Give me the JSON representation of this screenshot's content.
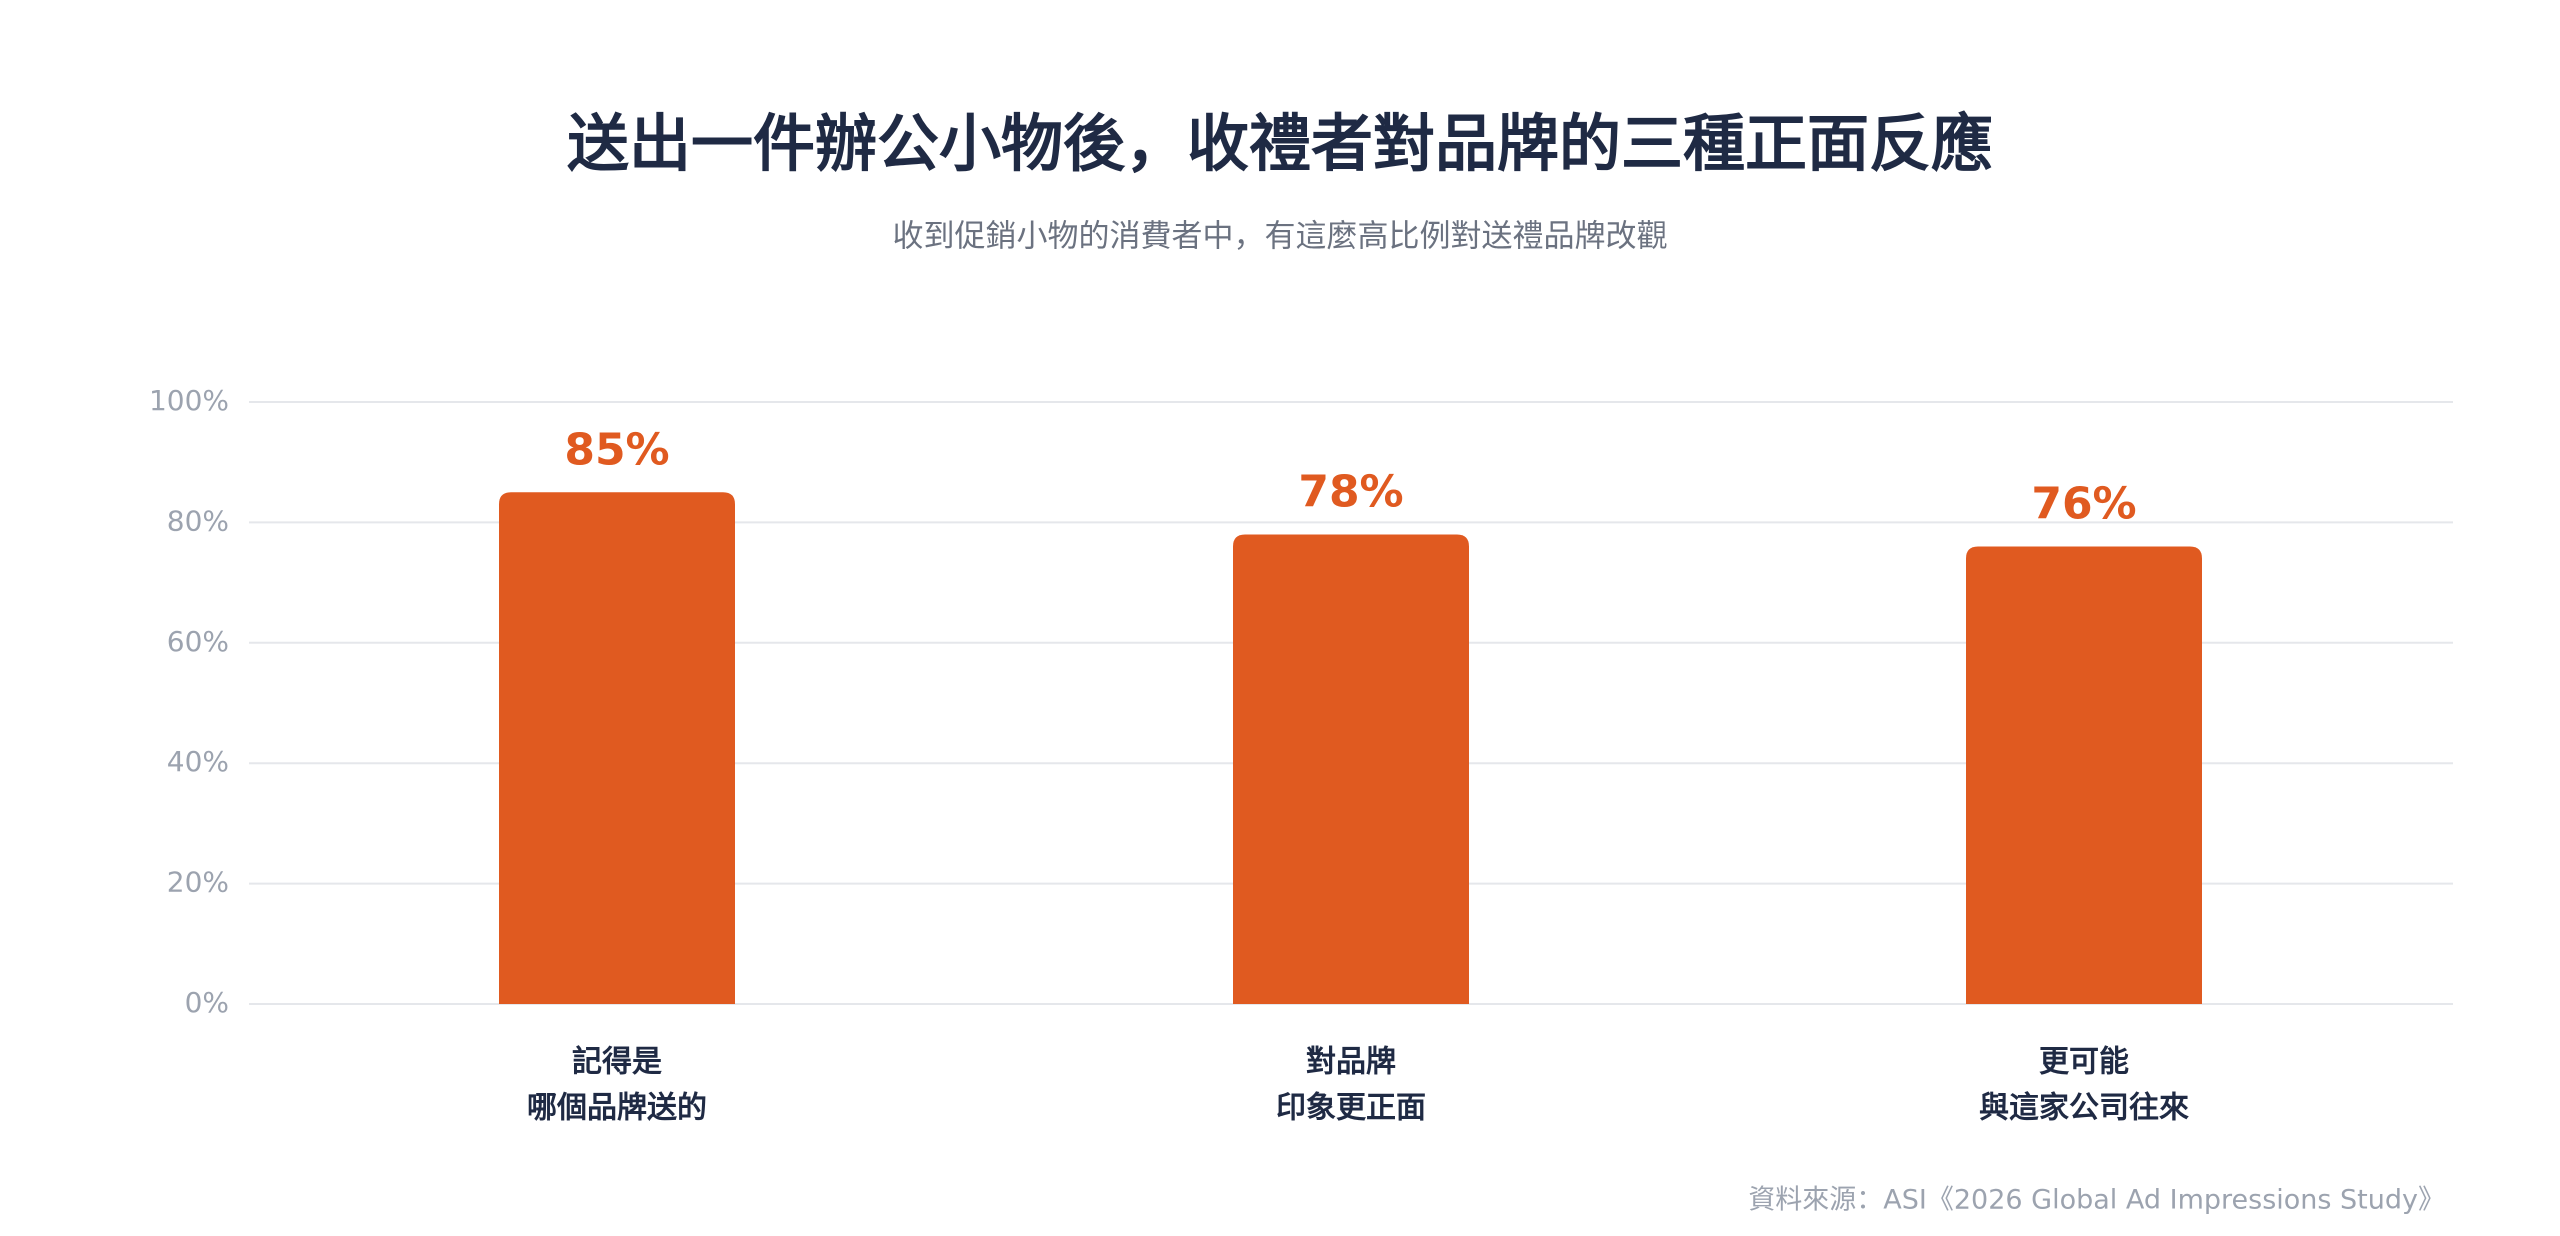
{
  "chart_data": {
    "type": "bar",
    "title": "送出一件辦公小物後，收禮者對品牌的三種正面反應",
    "subtitle": "收到促銷小物的消費者中，有這麼高比例對送禮品牌改觀",
    "categories": [
      [
        "記得是",
        "哪個品牌送的"
      ],
      [
        "對品牌",
        "印象更正面"
      ],
      [
        "更可能",
        "與這家公司往來"
      ]
    ],
    "values": [
      85,
      78,
      76
    ],
    "value_labels": [
      "85%",
      "78%",
      "76%"
    ],
    "color": "#e05a20",
    "ylim": [
      0,
      100
    ],
    "yticks": [
      {
        "value": 0,
        "label": "0%"
      },
      {
        "value": 20,
        "label": "20%"
      },
      {
        "value": 40,
        "label": "40%"
      },
      {
        "value": 60,
        "label": "60%"
      },
      {
        "value": 80,
        "label": "80%"
      },
      {
        "value": 100,
        "label": "100%"
      }
    ],
    "grid": true,
    "source": "資料來源：ASI《2026 Global Ad Impressions Study》"
  }
}
